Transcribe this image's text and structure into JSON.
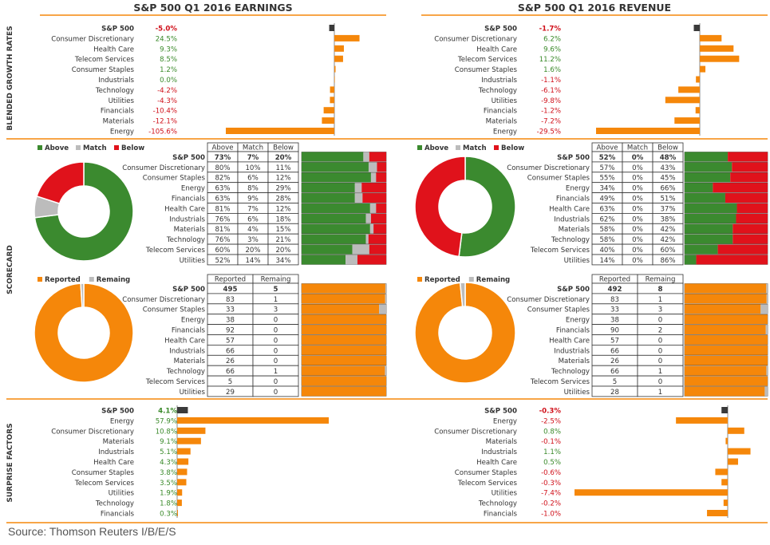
{
  "colors": {
    "orange": "#f5870a",
    "green": "#3b8a2f",
    "gray": "#bcbcbc",
    "red": "#e0121b",
    "dark": "#333333",
    "pos_text": "#3a8a2a",
    "neg_text": "#d0101a",
    "rule": "#f5870a"
  },
  "section_titles": {
    "earnings": "S&P 500 Q1 2016 EARNINGS",
    "revenue": "S&P 500 Q1 2016 REVENUE"
  },
  "side_labels": {
    "growth": "BLENDED GROWTH RATES",
    "scorecard": "SCORECARD",
    "surprise": "SURPRISE FACTORS"
  },
  "legends": {
    "above": "Above",
    "match": "Match",
    "below": "Below",
    "reported": "Reported",
    "remaining": "Remaing"
  },
  "table_headers": {
    "above": "Above",
    "match": "Match",
    "below": "Below",
    "reported": "Reported",
    "remaining": "Remaing"
  },
  "source": "Source: Thomson Reuters I/B/E/S",
  "chart_data": [
    {
      "id": "earnings_growth",
      "type": "bar",
      "title": "Blended Growth Rates - Earnings",
      "categories": [
        "S&P 500",
        "Consumer Discretionary",
        "Health Care",
        "Telecom Services",
        "Consumer Staples",
        "Industrials",
        "Technology",
        "Utilities",
        "Financials",
        "Materials",
        "Energy"
      ],
      "values": [
        -5.0,
        24.5,
        9.3,
        8.5,
        1.2,
        0.0,
        -4.2,
        -4.3,
        -10.4,
        -12.1,
        -105.6
      ],
      "labels": [
        "-5.0%",
        "24.5%",
        "9.3%",
        "8.5%",
        "1.2%",
        "0.0%",
        "-4.2%",
        "-4.3%",
        "-10.4%",
        "-12.1%",
        "-105.6%"
      ]
    },
    {
      "id": "revenue_growth",
      "type": "bar",
      "title": "Blended Growth Rates - Revenue",
      "categories": [
        "S&P 500",
        "Consumer Discretionary",
        "Health Care",
        "Telecom Services",
        "Consumer Staples",
        "Industrials",
        "Technology",
        "Utilities",
        "Financials",
        "Materials",
        "Energy"
      ],
      "values": [
        -1.7,
        6.2,
        9.6,
        11.2,
        1.6,
        -1.1,
        -6.1,
        -9.8,
        -1.2,
        -7.2,
        -29.5
      ],
      "labels": [
        "-1.7%",
        "6.2%",
        "9.6%",
        "11.2%",
        "1.6%",
        "-1.1%",
        "-6.1%",
        "-9.8%",
        "-1.2%",
        "-7.2%",
        "-29.5%"
      ]
    },
    {
      "id": "earnings_scorecard",
      "type": "table",
      "title": "Scorecard - Earnings",
      "donut": [
        73,
        7,
        20
      ],
      "categories": [
        "S&P 500",
        "Consumer Discretionary",
        "Consumer Staples",
        "Energy",
        "Financials",
        "Health Care",
        "Industrials",
        "Materials",
        "Technology",
        "Telecom Services",
        "Utilities"
      ],
      "above": [
        73,
        80,
        82,
        63,
        63,
        81,
        76,
        81,
        76,
        60,
        52
      ],
      "match": [
        7,
        10,
        6,
        8,
        9,
        7,
        6,
        4,
        3,
        20,
        14
      ],
      "below": [
        20,
        11,
        12,
        29,
        28,
        12,
        18,
        15,
        21,
        20,
        34
      ]
    },
    {
      "id": "revenue_scorecard",
      "type": "table",
      "title": "Scorecard - Revenue",
      "donut": [
        52,
        0,
        48
      ],
      "categories": [
        "S&P 500",
        "Consumer Discretionary",
        "Consumer Staples",
        "Energy",
        "Financials",
        "Health Care",
        "Industrials",
        "Materials",
        "Technology",
        "Telecom Services",
        "Utilities"
      ],
      "above": [
        52,
        57,
        55,
        34,
        49,
        63,
        62,
        58,
        58,
        40,
        14
      ],
      "match": [
        0,
        0,
        0,
        0,
        0,
        0,
        0,
        0,
        0,
        0,
        0
      ],
      "below": [
        48,
        43,
        45,
        66,
        51,
        37,
        38,
        42,
        42,
        60,
        86
      ]
    },
    {
      "id": "earnings_reported",
      "type": "table",
      "title": "Reported - Earnings",
      "donut": [
        495,
        5
      ],
      "categories": [
        "S&P 500",
        "Consumer Discretionary",
        "Consumer Staples",
        "Energy",
        "Financials",
        "Health Care",
        "Industrials",
        "Materials",
        "Technology",
        "Telecom Services",
        "Utilities"
      ],
      "reported": [
        495,
        83,
        33,
        38,
        92,
        57,
        66,
        26,
        66,
        5,
        29
      ],
      "remaining": [
        5,
        1,
        3,
        0,
        0,
        0,
        0,
        0,
        1,
        0,
        0
      ]
    },
    {
      "id": "revenue_reported",
      "type": "table",
      "title": "Reported - Revenue",
      "donut": [
        492,
        8
      ],
      "categories": [
        "S&P 500",
        "Consumer Discretionary",
        "Consumer Staples",
        "Energy",
        "Financials",
        "Health Care",
        "Industrials",
        "Materials",
        "Technology",
        "Telecom Services",
        "Utilities"
      ],
      "reported": [
        492,
        83,
        33,
        38,
        90,
        57,
        66,
        26,
        66,
        5,
        28
      ],
      "remaining": [
        8,
        1,
        3,
        0,
        2,
        0,
        0,
        0,
        1,
        0,
        1
      ]
    },
    {
      "id": "earnings_surprise",
      "type": "bar",
      "title": "Surprise Factors - Earnings",
      "categories": [
        "S&P 500",
        "Energy",
        "Consumer Discretionary",
        "Materials",
        "Industrials",
        "Health Care",
        "Consumer Staples",
        "Telecom Services",
        "Utilities",
        "Technology",
        "Financials"
      ],
      "values": [
        4.1,
        57.9,
        10.8,
        9.1,
        5.1,
        4.3,
        3.8,
        3.5,
        1.9,
        1.8,
        0.3
      ],
      "labels": [
        "4.1%",
        "57.9%",
        "10.8%",
        "9.1%",
        "5.1%",
        "4.3%",
        "3.8%",
        "3.5%",
        "1.9%",
        "1.8%",
        "0.3%"
      ]
    },
    {
      "id": "revenue_surprise",
      "type": "bar",
      "title": "Surprise Factors - Revenue",
      "categories": [
        "S&P 500",
        "Energy",
        "Consumer Discretionary",
        "Materials",
        "Industrials",
        "Health Care",
        "Consumer Staples",
        "Telecom Services",
        "Utilities",
        "Technology",
        "Financials"
      ],
      "values": [
        -0.3,
        -2.5,
        0.8,
        -0.1,
        1.1,
        0.5,
        -0.6,
        -0.3,
        -7.4,
        -0.2,
        -1.0
      ],
      "labels": [
        "-0.3%",
        "-2.5%",
        "0.8%",
        "-0.1%",
        "1.1%",
        "0.5%",
        "-0.6%",
        "-0.3%",
        "-7.4%",
        "-0.2%",
        "-1.0%"
      ]
    }
  ]
}
